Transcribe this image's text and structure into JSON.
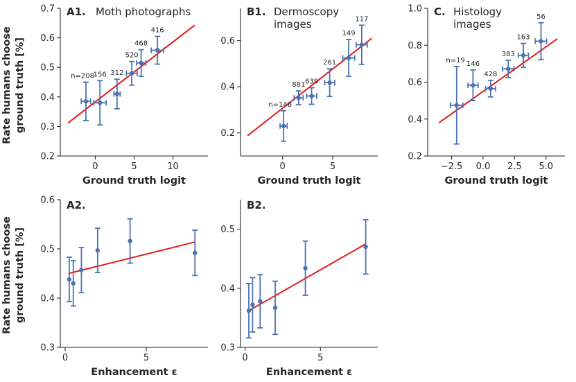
{
  "colors": {
    "points": "#4c72b0",
    "fit": "#e41a1c",
    "axis": "#262626"
  },
  "ylabel_line1": "Rate humans choose",
  "ylabel_line2": "ground truth [%]",
  "chart_data": [
    {
      "id": "A1",
      "type": "scatter",
      "panel_label": "A1.",
      "title_lines": [
        "Moth photographs"
      ],
      "xlabel": "Ground truth logit",
      "xlim": [
        -4.5,
        14.5
      ],
      "ylim": [
        0.2,
        0.7
      ],
      "xticks": [
        0,
        5,
        10
      ],
      "yticks": [
        0.2,
        0.3,
        0.4,
        0.5,
        0.6,
        0.7
      ],
      "xticklabels": [
        "0",
        "5",
        "10"
      ],
      "yticklabels": [
        "0.2",
        "0.3",
        "0.4",
        "0.5",
        "0.6",
        "0.7"
      ],
      "points": [
        {
          "x": -1.2,
          "y": 0.385,
          "yerr": 0.065,
          "xerr": 0.6,
          "n": "n=208"
        },
        {
          "x": 0.6,
          "y": 0.38,
          "yerr": 0.075,
          "xerr": 0.8,
          "n": "156"
        },
        {
          "x": 2.8,
          "y": 0.41,
          "yerr": 0.05,
          "xerr": 0.4,
          "n": "312"
        },
        {
          "x": 4.7,
          "y": 0.48,
          "yerr": 0.04,
          "xerr": 0.7,
          "n": "520"
        },
        {
          "x": 5.9,
          "y": 0.515,
          "yerr": 0.045,
          "xerr": 0.6,
          "n": "468"
        },
        {
          "x": 8.0,
          "y": 0.558,
          "yerr": 0.047,
          "xerr": 0.8,
          "n": "416"
        }
      ],
      "fit": {
        "x": [
          -3.5,
          12.8
        ],
        "y": [
          0.312,
          0.643
        ]
      }
    },
    {
      "id": "B1",
      "type": "scatter",
      "panel_label": "B1.",
      "title_lines": [
        "Dermoscopy",
        "images"
      ],
      "xlabel": "Ground truth logit",
      "xlim": [
        -4.2,
        9.5
      ],
      "ylim": [
        0.1,
        0.74
      ],
      "xticks": [
        0,
        5
      ],
      "yticks": [
        0.2,
        0.4,
        0.6
      ],
      "xticklabels": [
        "0",
        "5"
      ],
      "yticklabels": [
        "0.2",
        "0.4",
        "0.6"
      ],
      "points": [
        {
          "x": 0.1,
          "y": 0.23,
          "yerr": 0.066,
          "xerr": 0.35,
          "n": "n=148"
        },
        {
          "x": 1.6,
          "y": 0.352,
          "yerr": 0.03,
          "xerr": 0.45,
          "n": "881"
        },
        {
          "x": 2.9,
          "y": 0.36,
          "yerr": 0.036,
          "xerr": 0.5,
          "n": "639"
        },
        {
          "x": 4.7,
          "y": 0.418,
          "yerr": 0.06,
          "xerr": 0.5,
          "n": "261"
        },
        {
          "x": 6.6,
          "y": 0.525,
          "yerr": 0.08,
          "xerr": 0.6,
          "n": "149"
        },
        {
          "x": 7.9,
          "y": 0.582,
          "yerr": 0.085,
          "xerr": 0.55,
          "n": "117"
        }
      ],
      "fit": {
        "x": [
          -3.5,
          8.9
        ],
        "y": [
          0.188,
          0.61
        ]
      }
    },
    {
      "id": "C",
      "type": "scatter",
      "panel_label": "C.",
      "title_lines": [
        "Histology",
        "images"
      ],
      "xlabel": "Ground truth logit",
      "xlim": [
        -4.4,
        6.5
      ],
      "ylim": [
        0.2,
        1.0
      ],
      "xticks": [
        -2.5,
        0,
        2.5,
        5
      ],
      "yticks": [
        0.2,
        0.4,
        0.6,
        0.8,
        1.0
      ],
      "xticklabels": [
        "−2.5",
        "0.0",
        "2.5",
        "5.0"
      ],
      "yticklabels": [
        "0.2",
        "0.4",
        "0.6",
        "0.8",
        "1.0"
      ],
      "points": [
        {
          "x": -2.1,
          "y": 0.475,
          "yerr": 0.21,
          "xerr": 0.5,
          "n": "n=19"
        },
        {
          "x": -0.8,
          "y": 0.583,
          "yerr": 0.083,
          "xerr": 0.4,
          "n": "146"
        },
        {
          "x": 0.6,
          "y": 0.565,
          "yerr": 0.045,
          "xerr": 0.4,
          "n": "428"
        },
        {
          "x": 2.0,
          "y": 0.672,
          "yerr": 0.047,
          "xerr": 0.45,
          "n": "383"
        },
        {
          "x": 3.2,
          "y": 0.745,
          "yerr": 0.065,
          "xerr": 0.4,
          "n": "163"
        },
        {
          "x": 4.6,
          "y": 0.822,
          "yerr": 0.1,
          "xerr": 0.45,
          "n": "56"
        }
      ],
      "fit": {
        "x": [
          -3.5,
          5.9
        ],
        "y": [
          0.38,
          0.835
        ]
      }
    },
    {
      "id": "A2",
      "type": "scatter",
      "panel_label": "A2.",
      "title_lines": [],
      "xlabel": "Enhancement ε",
      "xlim": [
        -0.3,
        8.8
      ],
      "ylim": [
        0.3,
        0.6
      ],
      "xticks": [
        0,
        5
      ],
      "yticks": [
        0.3,
        0.4,
        0.5,
        0.6
      ],
      "xticklabels": [
        "0",
        "5"
      ],
      "yticklabels": [
        "0.3",
        "0.4",
        "0.5",
        "0.6"
      ],
      "points": [
        {
          "x": 0.25,
          "y": 0.438,
          "yerr": 0.045,
          "xerr": 0,
          "n": ""
        },
        {
          "x": 0.5,
          "y": 0.43,
          "yerr": 0.046,
          "xerr": 0,
          "n": ""
        },
        {
          "x": 1.0,
          "y": 0.457,
          "yerr": 0.046,
          "xerr": 0,
          "n": ""
        },
        {
          "x": 2.0,
          "y": 0.497,
          "yerr": 0.045,
          "xerr": 0,
          "n": ""
        },
        {
          "x": 4.0,
          "y": 0.516,
          "yerr": 0.045,
          "xerr": 0,
          "n": ""
        },
        {
          "x": 8.0,
          "y": 0.492,
          "yerr": 0.046,
          "xerr": 0,
          "n": ""
        }
      ],
      "fit": {
        "x": [
          0.2,
          8.0
        ],
        "y": [
          0.45,
          0.514
        ]
      }
    },
    {
      "id": "B2",
      "type": "scatter",
      "panel_label": "B2.",
      "title_lines": [],
      "xlabel": "Enhancement ε",
      "xlim": [
        -0.3,
        8.8
      ],
      "ylim": [
        0.3,
        0.55
      ],
      "xticks": [
        0,
        5
      ],
      "yticks": [
        0.3,
        0.4,
        0.5
      ],
      "xticklabels": [
        "0",
        "5"
      ],
      "yticklabels": [
        "0.3",
        "0.4",
        "0.5"
      ],
      "points": [
        {
          "x": 0.25,
          "y": 0.362,
          "yerr": 0.046,
          "xerr": 0,
          "n": ""
        },
        {
          "x": 0.5,
          "y": 0.372,
          "yerr": 0.046,
          "xerr": 0,
          "n": ""
        },
        {
          "x": 1.0,
          "y": 0.378,
          "yerr": 0.045,
          "xerr": 0,
          "n": ""
        },
        {
          "x": 2.0,
          "y": 0.367,
          "yerr": 0.045,
          "xerr": 0,
          "n": ""
        },
        {
          "x": 4.0,
          "y": 0.434,
          "yerr": 0.046,
          "xerr": 0,
          "n": ""
        },
        {
          "x": 8.0,
          "y": 0.47,
          "yerr": 0.046,
          "xerr": 0,
          "n": ""
        }
      ],
      "fit": {
        "x": [
          0.25,
          8.0
        ],
        "y": [
          0.362,
          0.475
        ]
      }
    }
  ]
}
